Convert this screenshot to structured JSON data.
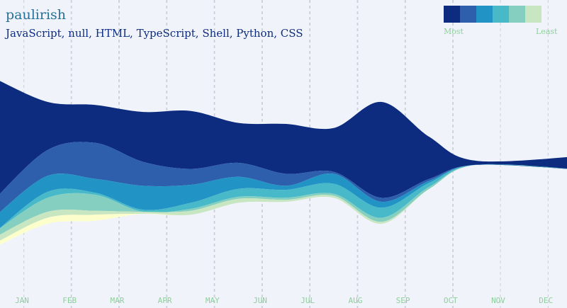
{
  "header": {
    "title": "paulirish",
    "subtitle": "JavaScript, null, HTML, TypeScript, Shell, Python, CSS"
  },
  "legend": {
    "most_label": "Most",
    "least_label": "Least",
    "colors": [
      "#0d2c80",
      "#2d5fad",
      "#2193c4",
      "#48b9c8",
      "#85cfc1",
      "#c8e6c1",
      "#fcffcc"
    ]
  },
  "chart_data": {
    "type": "area",
    "stacked": true,
    "offset": "silhouette",
    "title": "paulirish",
    "subtitle": "JavaScript, null, HTML, TypeScript, Shell, Python, CSS",
    "categories": [
      "JAN",
      "FEB",
      "MAR",
      "APR",
      "MAY",
      "JUN",
      "JUL",
      "AUG",
      "SEP",
      "OCT",
      "NOV",
      "DEC"
    ],
    "series": [
      {
        "name": "JavaScript",
        "color": "#0d2c80",
        "values": [
          58,
          24,
          19,
          25,
          29,
          20,
          25,
          22,
          48,
          21,
          2,
          8
        ]
      },
      {
        "name": "null",
        "color": "#2d5fad",
        "values": [
          9,
          13,
          18,
          12,
          8,
          7,
          6,
          1,
          2,
          1,
          0,
          0
        ]
      },
      {
        "name": "HTML",
        "color": "#2193c4",
        "values": [
          8,
          8,
          7,
          12,
          9,
          6,
          2,
          5,
          3,
          1,
          0,
          0
        ]
      },
      {
        "name": "TypeScript",
        "color": "#48b9c8",
        "values": [
          0,
          3,
          1,
          1,
          3,
          4,
          4,
          5,
          5,
          2,
          0,
          0
        ]
      },
      {
        "name": "Shell",
        "color": "#85cfc1",
        "values": [
          3,
          7,
          8,
          0,
          1,
          1,
          1,
          1,
          2,
          1,
          0,
          0
        ]
      },
      {
        "name": "Python",
        "color": "#c8e6c1",
        "values": [
          3,
          3,
          2,
          1,
          2,
          2,
          1,
          1,
          1,
          0,
          0,
          0
        ]
      },
      {
        "name": "CSS",
        "color": "#fcffcc",
        "values": [
          2,
          3,
          3,
          0,
          0,
          0,
          0,
          0,
          0,
          0,
          0,
          0
        ]
      }
    ],
    "grid": true,
    "legend": "top-right"
  }
}
